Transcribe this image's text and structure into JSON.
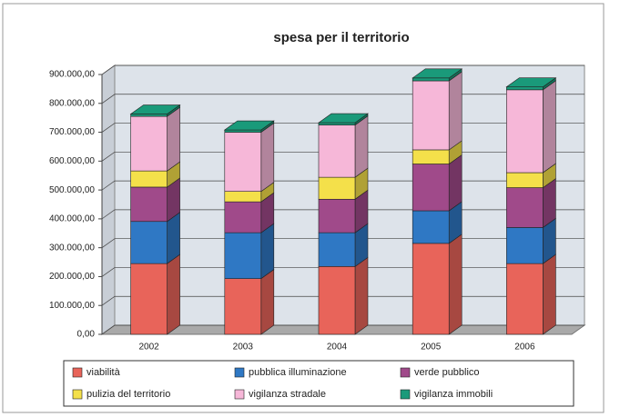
{
  "chart_data": {
    "type": "bar",
    "stacked": true,
    "three_d": true,
    "title": "spesa per il territorio",
    "categories": [
      "2002",
      "2003",
      "2004",
      "2005",
      "2006"
    ],
    "series": [
      {
        "name": "viabilità",
        "color": "#e8645a",
        "values": [
          245000,
          193000,
          235000,
          315000,
          245000
        ]
      },
      {
        "name": "pubblica illuminazione",
        "color": "#2f78c4",
        "values": [
          146000,
          159000,
          117000,
          113000,
          125000
        ]
      },
      {
        "name": "verde pubblico",
        "color": "#a04a8a",
        "values": [
          119000,
          107000,
          116000,
          162000,
          138000
        ]
      },
      {
        "name": "pulizia del territorio",
        "color": "#f4e04a",
        "values": [
          56000,
          36000,
          76000,
          49000,
          52000
        ]
      },
      {
        "name": "vigilanza stradale",
        "color": "#f6b7d8",
        "values": [
          189000,
          205000,
          181000,
          239000,
          287000
        ]
      },
      {
        "name": "vigilanza immobili",
        "color": "#1a9a7a",
        "values": [
          8000,
          8000,
          8000,
          10000,
          10000
        ]
      }
    ],
    "ylim": [
      0,
      900000
    ],
    "yticks": [
      {
        "value": 0,
        "label": "0,00"
      },
      {
        "value": 100000,
        "label": "100.000,00"
      },
      {
        "value": 200000,
        "label": "200.000,00"
      },
      {
        "value": 300000,
        "label": "300.000,00"
      },
      {
        "value": 400000,
        "label": "400.000,00"
      },
      {
        "value": 500000,
        "label": "500.000,00"
      },
      {
        "value": 600000,
        "label": "600.000,00"
      },
      {
        "value": 700000,
        "label": "700.000,00"
      },
      {
        "value": 800000,
        "label": "800.000,00"
      },
      {
        "value": 900000,
        "label": "900.000,00"
      }
    ],
    "grid": true,
    "legend": "bottom"
  }
}
